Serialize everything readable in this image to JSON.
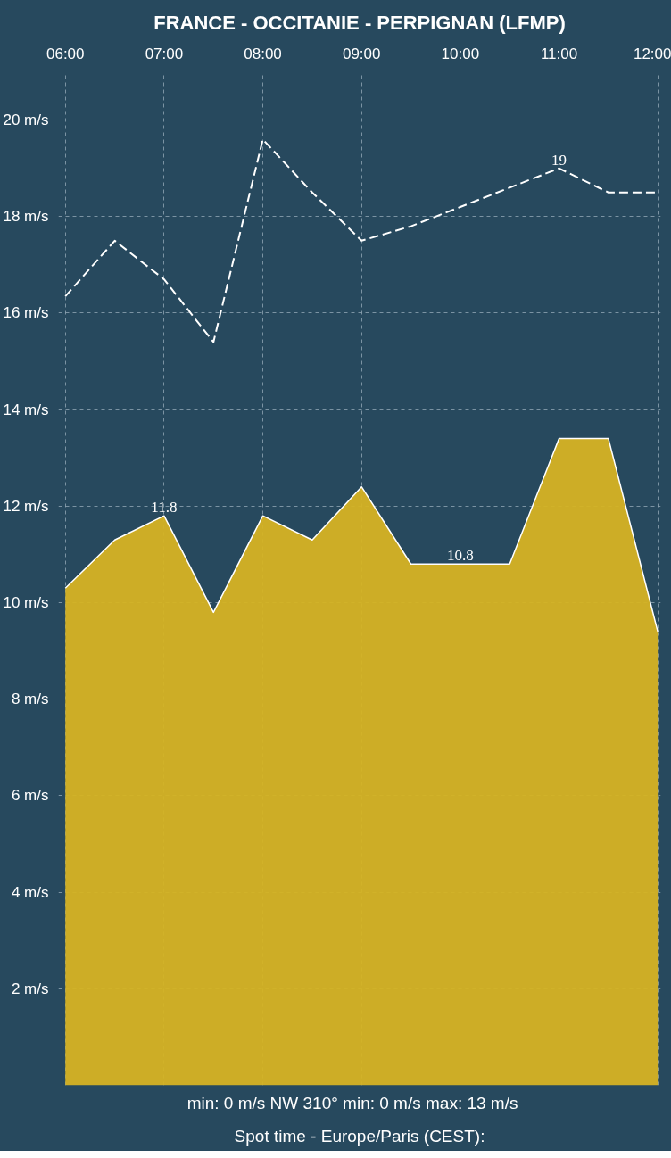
{
  "chart_data": {
    "type": "area",
    "title": "FRANCE - OCCITANIE - PERPIGNAN (LFMP)",
    "x": [
      6.0,
      6.5,
      7.0,
      7.5,
      8.0,
      8.5,
      9.0,
      9.5,
      10.0,
      10.5,
      11.0,
      11.5,
      12.0
    ],
    "series": [
      {
        "color": "#d6b323",
        "values": [
          10.3,
          11.3,
          11.8,
          9.8,
          11.8,
          11.3,
          12.4,
          10.8,
          10.8,
          10.8,
          13.4,
          13.4,
          9.4
        ],
        "value_labels": [
          null,
          null,
          "11.8",
          null,
          null,
          null,
          null,
          null,
          "10.8",
          null,
          null,
          null,
          null
        ]
      },
      {
        "type": "line",
        "color": "#ffffff",
        "line_style": "dashed",
        "values": [
          16.35,
          17.5,
          16.7,
          15.4,
          19.6,
          18.5,
          17.5,
          17.8,
          18.2,
          18.6,
          19.0,
          18.5,
          18.5
        ],
        "value_labels": [
          null,
          null,
          null,
          null,
          null,
          null,
          null,
          null,
          null,
          null,
          "19",
          null,
          null
        ]
      }
    ],
    "xlim": [
      5.93,
      12.03
    ],
    "xticks": [
      {
        "value": 6,
        "label": "06:00"
      },
      {
        "value": 7,
        "label": "07:00"
      },
      {
        "value": 8,
        "label": "08:00"
      },
      {
        "value": 9,
        "label": "09:00"
      },
      {
        "value": 10,
        "label": "10:00"
      },
      {
        "value": 11,
        "label": "11:00"
      },
      {
        "value": 12,
        "label": "12:00"
      }
    ],
    "ylim": [
      0,
      21
    ],
    "yticks": [
      {
        "value": 2,
        "label": "2 m/s"
      },
      {
        "value": 4,
        "label": "4 m/s"
      },
      {
        "value": 6,
        "label": "6 m/s"
      },
      {
        "value": 8,
        "label": "8 m/s"
      },
      {
        "value": 10,
        "label": "10 m/s"
      },
      {
        "value": 12,
        "label": "12 m/s"
      },
      {
        "value": 14,
        "label": "14 m/s"
      },
      {
        "value": 16,
        "label": "16 m/s"
      },
      {
        "value": 18,
        "label": "18 m/s"
      },
      {
        "value": 20,
        "label": "20 m/s"
      }
    ],
    "grid": true,
    "annotations": [
      "min: 0 m/s  NW 310°  min: 0 m/s  max: 13 m/s",
      "Spot time - Europe/Paris (CEST):"
    ]
  }
}
